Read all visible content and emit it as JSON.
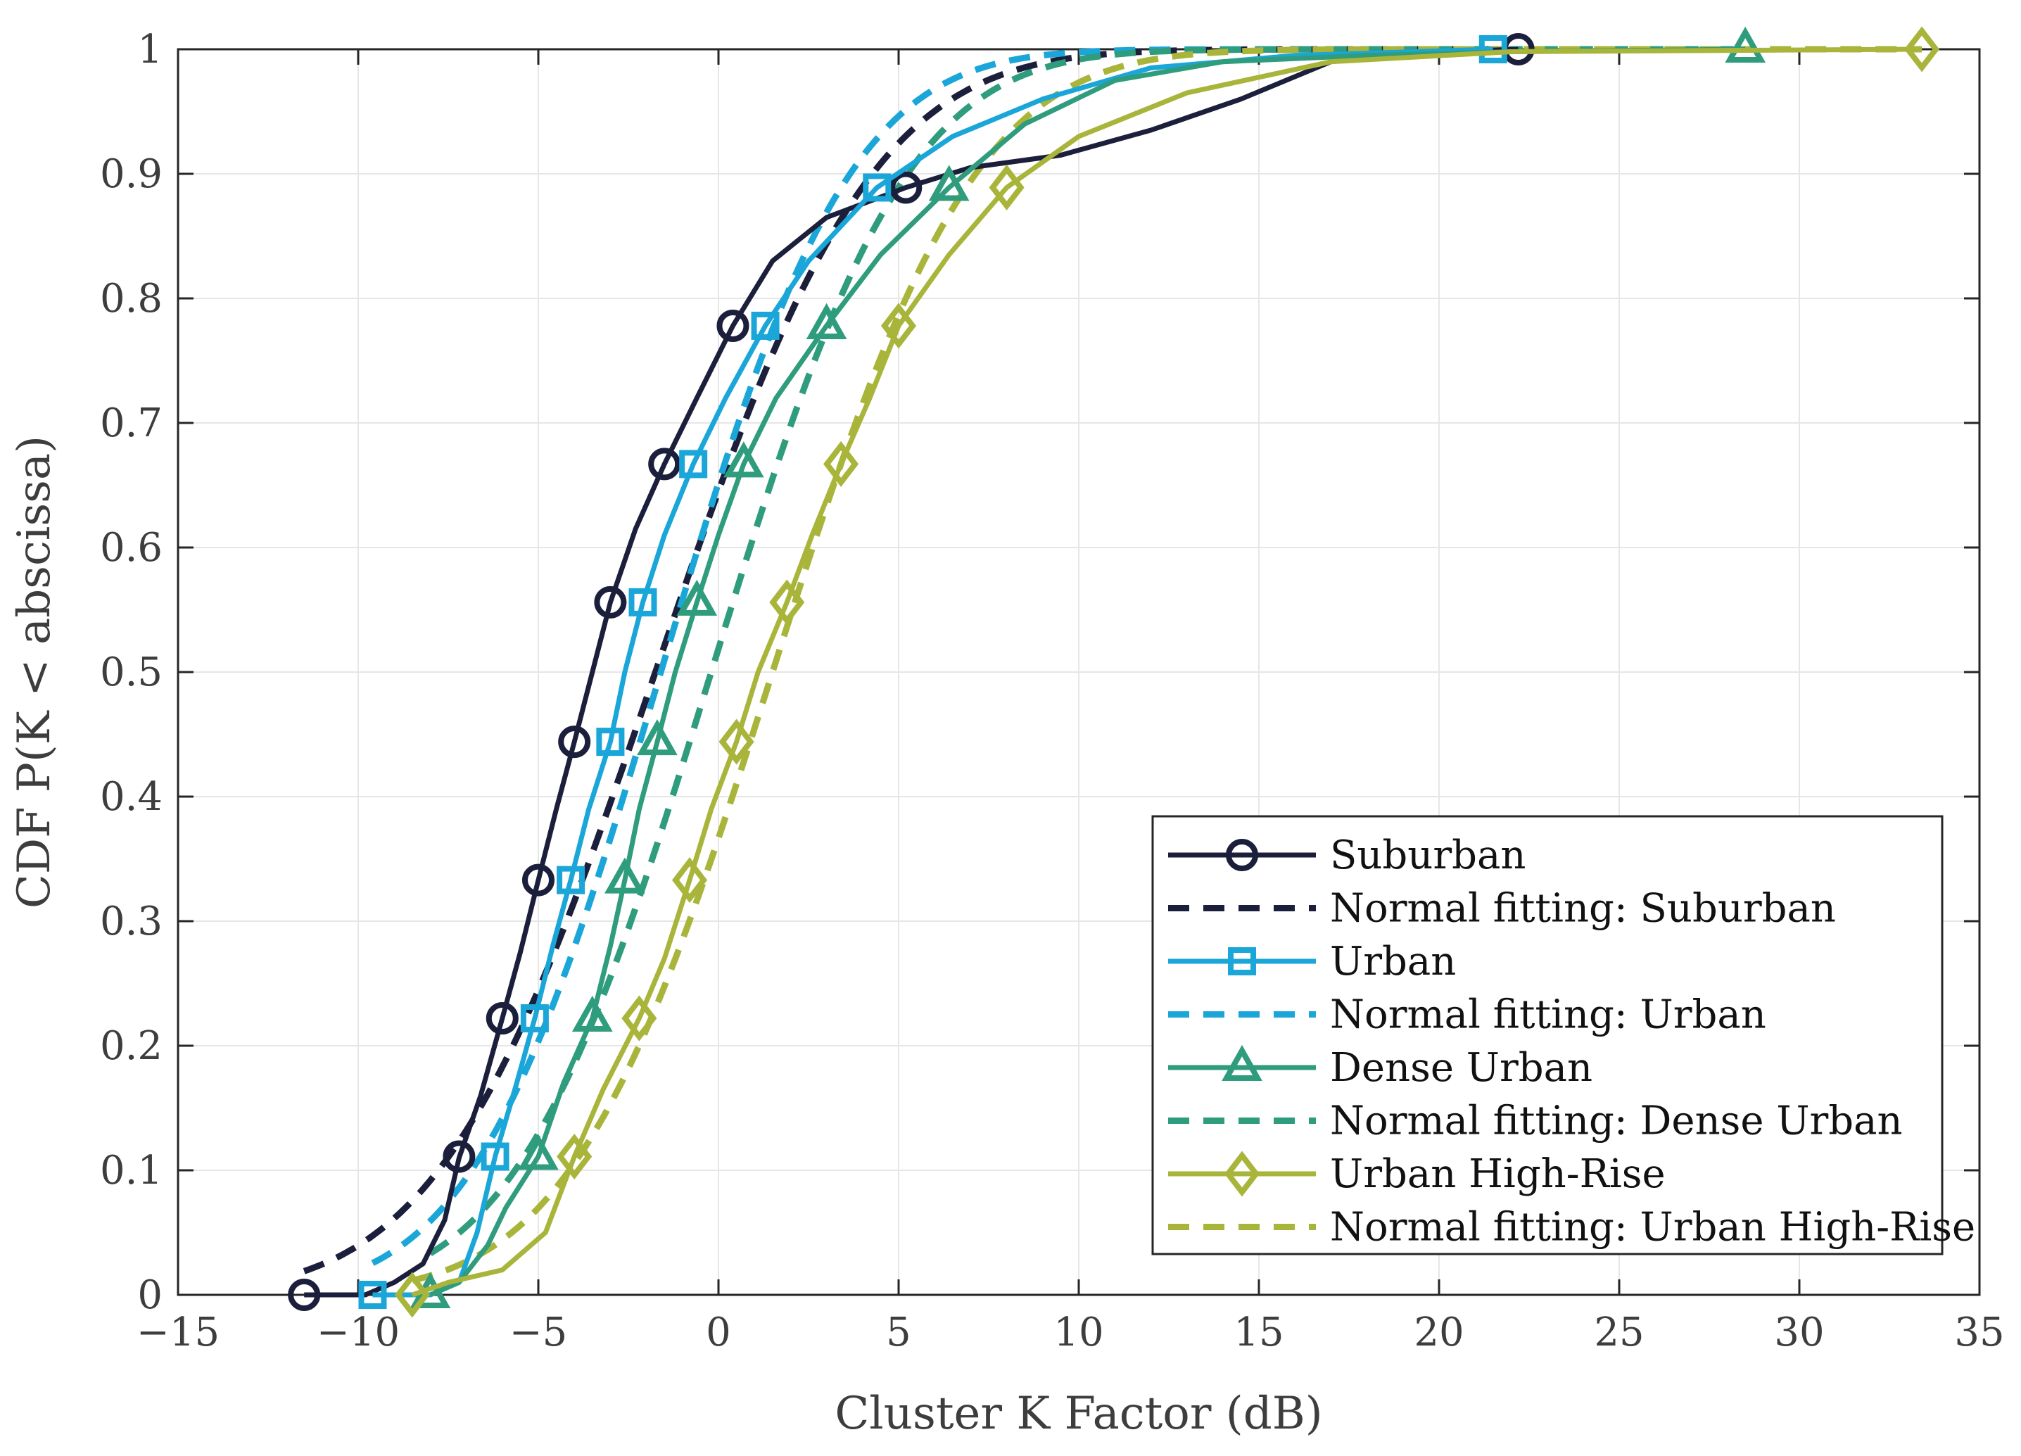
{
  "chart_data": {
    "type": "line",
    "title": "",
    "xlabel": "Cluster K Factor (dB)",
    "ylabel": "CDF P(K < abscissa)",
    "xlim": [
      -15,
      35
    ],
    "ylim": [
      0,
      1
    ],
    "x_ticks": [
      -15,
      -10,
      -5,
      0,
      5,
      10,
      15,
      20,
      25,
      30,
      35
    ],
    "x_tick_labels": [
      "−15",
      "−10",
      "−5",
      "0",
      "5",
      "10",
      "15",
      "20",
      "25",
      "30",
      "35"
    ],
    "y_ticks": [
      0,
      0.1,
      0.2,
      0.3,
      0.4,
      0.5,
      0.6,
      0.7,
      0.8,
      0.9,
      1
    ],
    "y_tick_labels": [
      "0",
      "0.1",
      "0.2",
      "0.3",
      "0.4",
      "0.5",
      "0.6",
      "0.7",
      "0.8",
      "0.9",
      "1"
    ],
    "grid": true,
    "legend_position": "bottom-right",
    "series": [
      {
        "name": "Suburban",
        "color": "#1b1f3b",
        "style": "solid",
        "marker": "circle",
        "points": [
          [
            -11.5,
            0.0
          ],
          [
            -9.8,
            0.0
          ],
          [
            -9.0,
            0.01
          ],
          [
            -8.2,
            0.025
          ],
          [
            -7.6,
            0.06
          ],
          [
            -7.2,
            0.11
          ],
          [
            -6.6,
            0.16
          ],
          [
            -6.0,
            0.222
          ],
          [
            -5.5,
            0.275
          ],
          [
            -5.0,
            0.333
          ],
          [
            -4.5,
            0.39
          ],
          [
            -4.0,
            0.444
          ],
          [
            -3.5,
            0.5
          ],
          [
            -3.0,
            0.556
          ],
          [
            -2.3,
            0.615
          ],
          [
            -1.5,
            0.667
          ],
          [
            -0.6,
            0.72
          ],
          [
            0.4,
            0.778
          ],
          [
            1.5,
            0.83
          ],
          [
            3.0,
            0.865
          ],
          [
            5.2,
            0.889
          ],
          [
            7.0,
            0.905
          ],
          [
            9.5,
            0.915
          ],
          [
            12.0,
            0.935
          ],
          [
            14.5,
            0.96
          ],
          [
            17.0,
            0.99
          ],
          [
            20.0,
            0.998
          ],
          [
            22.2,
            1.0
          ]
        ],
        "markers": [
          [
            -11.5,
            0.0
          ],
          [
            -7.2,
            0.111
          ],
          [
            -6.0,
            0.222
          ],
          [
            -5.0,
            0.333
          ],
          [
            -4.0,
            0.444
          ],
          [
            -3.0,
            0.556
          ],
          [
            -1.5,
            0.667
          ],
          [
            0.4,
            0.778
          ],
          [
            5.2,
            0.889
          ],
          [
            22.2,
            1.0
          ]
        ]
      },
      {
        "name": "Normal fitting: Suburban",
        "color": "#1b1f3b",
        "style": "dashed",
        "marker": "none",
        "normal_fit": {
          "mean": -1.75,
          "std": 4.7
        },
        "x_range": [
          -11.5,
          22.2
        ]
      },
      {
        "name": "Urban",
        "color": "#1aa6d8",
        "style": "solid",
        "marker": "square",
        "points": [
          [
            -9.6,
            0.0
          ],
          [
            -8.0,
            0.0
          ],
          [
            -7.2,
            0.01
          ],
          [
            -6.7,
            0.05
          ],
          [
            -6.2,
            0.111
          ],
          [
            -5.6,
            0.17
          ],
          [
            -5.1,
            0.222
          ],
          [
            -4.6,
            0.28
          ],
          [
            -4.1,
            0.333
          ],
          [
            -3.6,
            0.39
          ],
          [
            -3.0,
            0.444
          ],
          [
            -2.6,
            0.5
          ],
          [
            -2.1,
            0.556
          ],
          [
            -1.5,
            0.61
          ],
          [
            -0.7,
            0.667
          ],
          [
            0.2,
            0.72
          ],
          [
            1.3,
            0.778
          ],
          [
            2.5,
            0.83
          ],
          [
            4.4,
            0.889
          ],
          [
            6.5,
            0.93
          ],
          [
            9.0,
            0.96
          ],
          [
            12.0,
            0.985
          ],
          [
            16.0,
            0.995
          ],
          [
            21.5,
            1.0
          ]
        ],
        "markers": [
          [
            -9.6,
            0.0
          ],
          [
            -6.2,
            0.111
          ],
          [
            -5.1,
            0.222
          ],
          [
            -4.1,
            0.333
          ],
          [
            -3.0,
            0.444
          ],
          [
            -2.1,
            0.556
          ],
          [
            -0.7,
            0.667
          ],
          [
            1.3,
            0.778
          ],
          [
            4.4,
            0.889
          ],
          [
            21.5,
            1.0
          ]
        ]
      },
      {
        "name": "Normal fitting: Urban",
        "color": "#1aa6d8",
        "style": "dashed",
        "marker": "none",
        "normal_fit": {
          "mean": -1.6,
          "std": 4.1
        },
        "x_range": [
          -9.6,
          21.5
        ]
      },
      {
        "name": "Dense Urban",
        "color": "#2e9c7d",
        "style": "solid",
        "marker": "triangle",
        "points": [
          [
            -8.0,
            0.0
          ],
          [
            -7.2,
            0.01
          ],
          [
            -6.4,
            0.04
          ],
          [
            -5.9,
            0.07
          ],
          [
            -5.0,
            0.111
          ],
          [
            -4.3,
            0.17
          ],
          [
            -3.5,
            0.222
          ],
          [
            -3.0,
            0.28
          ],
          [
            -2.6,
            0.333
          ],
          [
            -2.2,
            0.39
          ],
          [
            -1.7,
            0.444
          ],
          [
            -1.2,
            0.5
          ],
          [
            -0.6,
            0.556
          ],
          [
            0.0,
            0.61
          ],
          [
            0.7,
            0.667
          ],
          [
            1.6,
            0.72
          ],
          [
            3.0,
            0.778
          ],
          [
            4.5,
            0.835
          ],
          [
            6.4,
            0.889
          ],
          [
            8.5,
            0.94
          ],
          [
            11.0,
            0.975
          ],
          [
            14.0,
            0.99
          ],
          [
            18.0,
            0.995
          ],
          [
            22.0,
            0.998
          ],
          [
            28.5,
            1.0
          ]
        ],
        "markers": [
          [
            -8.0,
            0.0
          ],
          [
            -5.0,
            0.111
          ],
          [
            -3.5,
            0.222
          ],
          [
            -2.6,
            0.333
          ],
          [
            -1.7,
            0.444
          ],
          [
            -0.6,
            0.556
          ],
          [
            0.7,
            0.667
          ],
          [
            3.0,
            0.778
          ],
          [
            6.4,
            0.889
          ],
          [
            28.5,
            1.0
          ]
        ]
      },
      {
        "name": "Normal fitting: Dense Urban",
        "color": "#2e9c7d",
        "style": "dashed",
        "marker": "none",
        "normal_fit": {
          "mean": -0.2,
          "std": 4.25
        },
        "x_range": [
          -8.0,
          28.5
        ]
      },
      {
        "name": "Urban High-Rise",
        "color": "#a9b53a",
        "style": "solid",
        "marker": "diamond",
        "points": [
          [
            -8.5,
            0.0
          ],
          [
            -7.5,
            0.01
          ],
          [
            -6.0,
            0.02
          ],
          [
            -4.8,
            0.05
          ],
          [
            -4.0,
            0.111
          ],
          [
            -3.2,
            0.165
          ],
          [
            -2.2,
            0.222
          ],
          [
            -1.5,
            0.27
          ],
          [
            -0.8,
            0.333
          ],
          [
            -0.2,
            0.39
          ],
          [
            0.5,
            0.444
          ],
          [
            1.1,
            0.5
          ],
          [
            1.9,
            0.556
          ],
          [
            2.6,
            0.61
          ],
          [
            3.4,
            0.667
          ],
          [
            4.2,
            0.72
          ],
          [
            5.0,
            0.778
          ],
          [
            6.4,
            0.835
          ],
          [
            8.0,
            0.889
          ],
          [
            10.0,
            0.93
          ],
          [
            13.0,
            0.965
          ],
          [
            17.0,
            0.99
          ],
          [
            22.0,
            0.998
          ],
          [
            33.4,
            1.0
          ]
        ],
        "markers": [
          [
            -8.5,
            0.0
          ],
          [
            -4.0,
            0.111
          ],
          [
            -2.2,
            0.222
          ],
          [
            -0.8,
            0.333
          ],
          [
            0.5,
            0.444
          ],
          [
            1.9,
            0.556
          ],
          [
            3.4,
            0.667
          ],
          [
            5.0,
            0.778
          ],
          [
            8.0,
            0.889
          ],
          [
            33.4,
            1.0
          ]
        ]
      },
      {
        "name": "Normal fitting: Urban High-Rise",
        "color": "#a9b53a",
        "style": "dashed",
        "marker": "none",
        "normal_fit": {
          "mean": 1.5,
          "std": 4.4
        },
        "x_range": [
          -8.5,
          33.4
        ]
      }
    ]
  }
}
